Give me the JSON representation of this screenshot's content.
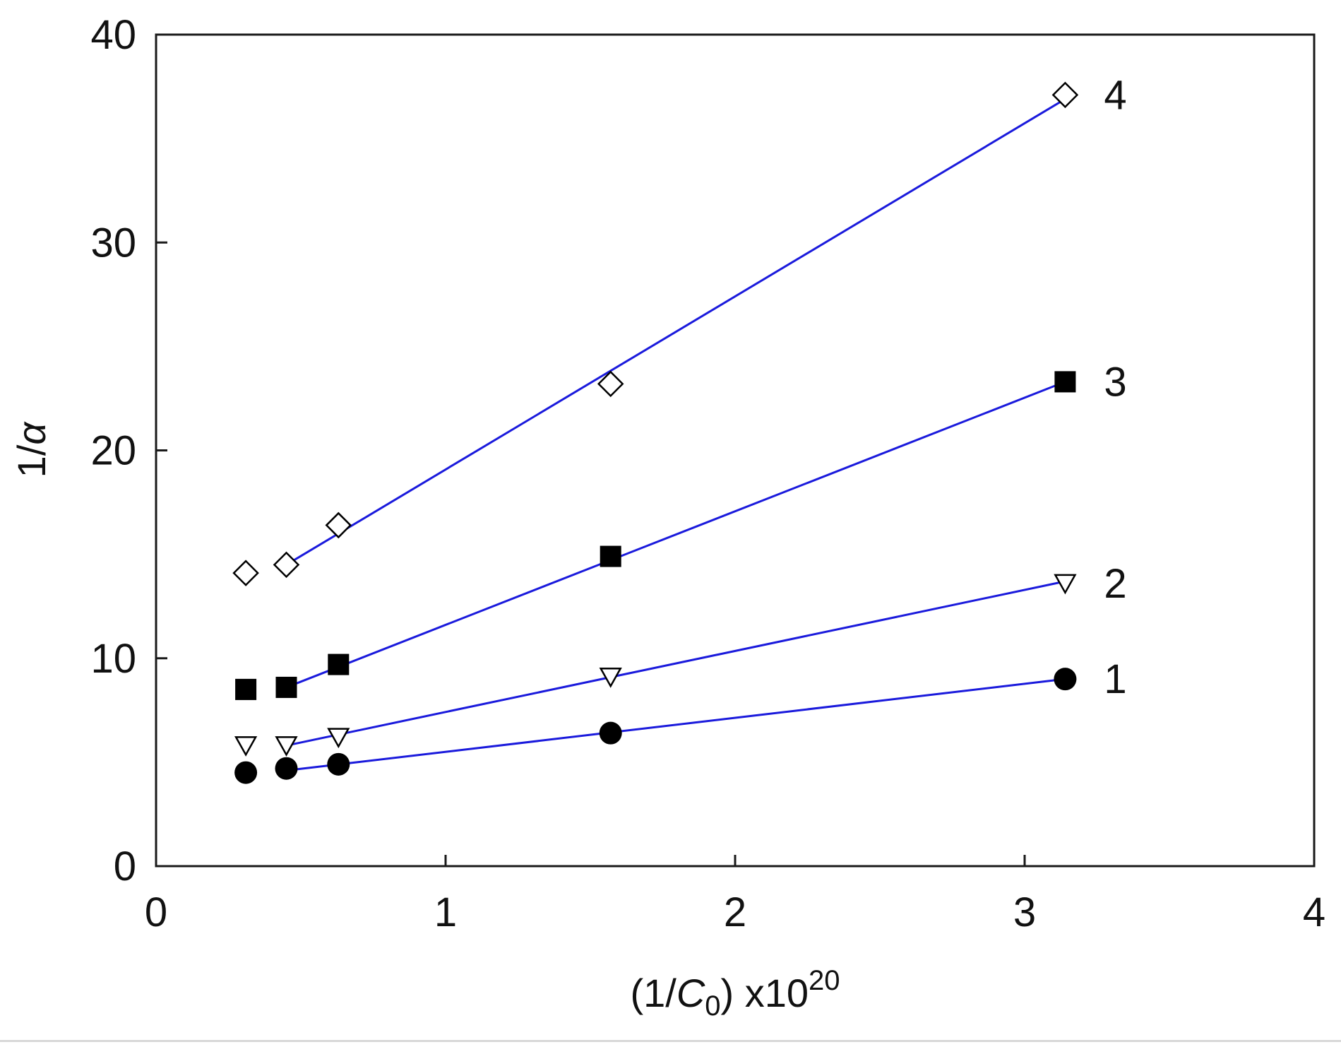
{
  "chart_data": {
    "type": "scatter",
    "title": "",
    "xlabel": {
      "prefix": "(1/",
      "symbol": "C",
      "subscript": "0",
      "suffix": ") x10",
      "superscript": "20"
    },
    "ylabel": {
      "prefix": "1/",
      "symbol": "α"
    },
    "xlim": [
      0,
      4
    ],
    "ylim": [
      0,
      40
    ],
    "xticks": [
      "0",
      "1",
      "2",
      "3",
      "4"
    ],
    "yticks": [
      "0",
      "10",
      "20",
      "30",
      "40"
    ],
    "grid": false,
    "line_color": "#1a1adc",
    "series": [
      {
        "name": "1",
        "marker": "circle-filled",
        "x": [
          0.31,
          0.45,
          0.63,
          1.57,
          3.14
        ],
        "y": [
          4.5,
          4.7,
          4.9,
          6.4,
          9.0
        ],
        "fit": {
          "x": [
            0.45,
            3.14
          ],
          "y": [
            4.6,
            9.0
          ]
        }
      },
      {
        "name": "2",
        "marker": "triangle-down-open",
        "x": [
          0.31,
          0.45,
          0.63,
          1.57,
          3.14
        ],
        "y": [
          5.8,
          5.8,
          6.2,
          9.1,
          13.6
        ],
        "fit": {
          "x": [
            0.45,
            3.14
          ],
          "y": [
            5.8,
            13.7
          ]
        }
      },
      {
        "name": "3",
        "marker": "square-filled",
        "x": [
          0.31,
          0.45,
          0.63,
          1.57,
          3.14
        ],
        "y": [
          8.5,
          8.6,
          9.7,
          14.9,
          23.3
        ],
        "fit": {
          "x": [
            0.45,
            3.14
          ],
          "y": [
            8.6,
            23.3
          ]
        }
      },
      {
        "name": "4",
        "marker": "diamond-open",
        "x": [
          0.31,
          0.45,
          0.63,
          1.57,
          3.14
        ],
        "y": [
          14.1,
          14.5,
          16.4,
          23.2,
          37.1
        ],
        "fit": {
          "x": [
            0.45,
            3.14
          ],
          "y": [
            14.5,
            36.9
          ]
        }
      }
    ]
  }
}
